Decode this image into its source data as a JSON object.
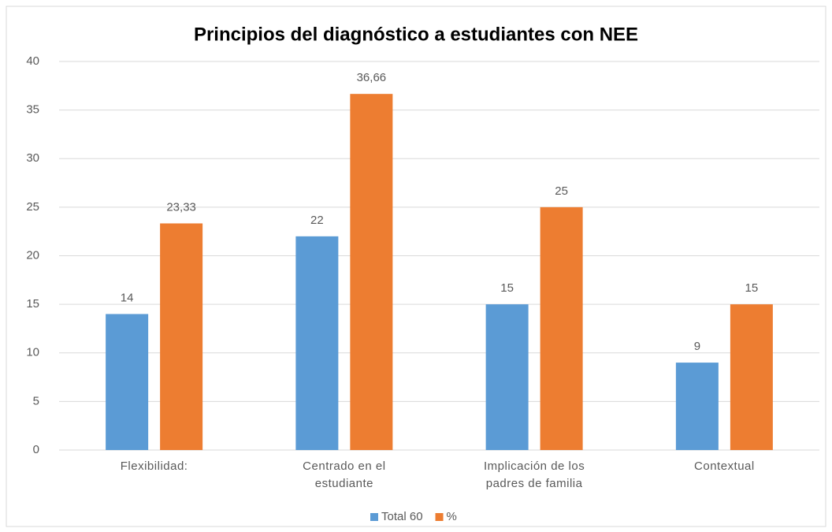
{
  "chart_data": {
    "type": "bar",
    "title": "Principios del diagnóstico a estudiantes con NEE",
    "categories": [
      "Flexibilidad:",
      "Centrado en el estudiante",
      "Implicación de los padres de familia",
      "Contextual"
    ],
    "series": [
      {
        "name": "Total 60",
        "color": "#5b9bd5",
        "values": [
          14,
          22,
          15,
          9
        ]
      },
      {
        "name": "%",
        "color": "#ed7d31",
        "values": [
          23.33,
          36.66,
          25,
          15
        ],
        "value_labels": [
          "23,33",
          "36,66",
          "25",
          "15"
        ]
      }
    ],
    "ylim": [
      0,
      40
    ],
    "yticks": [
      0,
      5,
      10,
      15,
      20,
      25,
      30,
      35,
      40
    ],
    "grid": true,
    "legend": "bottom"
  }
}
